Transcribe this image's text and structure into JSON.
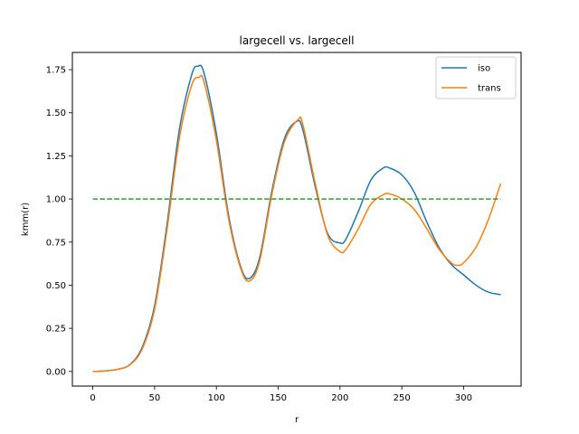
{
  "chart_data": {
    "type": "line",
    "title": "largecell vs. largecell",
    "xlabel": "r",
    "ylabel": "kmm(r)",
    "xlim": [
      -16.5,
      346.5
    ],
    "ylim": [
      -0.085,
      1.85
    ],
    "xticks": [
      0,
      50,
      100,
      150,
      200,
      250,
      300
    ],
    "yticks": [
      0.0,
      0.25,
      0.5,
      0.75,
      1.0,
      1.25,
      1.5,
      1.75
    ],
    "ytick_labels": [
      "0.00",
      "0.25",
      "0.50",
      "0.75",
      "1.00",
      "1.25",
      "1.50",
      "1.75"
    ],
    "grid": false,
    "legend_position": "top-right",
    "series": [
      {
        "name": "iso",
        "color": "#1f77b4",
        "style": "solid",
        "x": [
          0,
          10,
          20,
          30,
          40,
          50,
          60,
          70,
          80,
          85,
          90,
          100,
          110,
          120,
          127,
          135,
          145,
          155,
          165,
          170,
          180,
          190,
          200,
          205,
          215,
          225,
          235,
          240,
          250,
          260,
          270,
          280,
          290,
          300,
          310,
          320,
          330
        ],
        "y": [
          0.0,
          0.003,
          0.012,
          0.04,
          0.14,
          0.38,
          0.85,
          1.4,
          1.72,
          1.77,
          1.73,
          1.38,
          0.9,
          0.6,
          0.54,
          0.66,
          1.05,
          1.35,
          1.45,
          1.4,
          1.07,
          0.8,
          0.745,
          0.77,
          0.93,
          1.11,
          1.18,
          1.18,
          1.14,
          1.04,
          0.87,
          0.72,
          0.62,
          0.56,
          0.5,
          0.46,
          0.445
        ]
      },
      {
        "name": "trans",
        "color": "#ff7f0e",
        "style": "solid",
        "x": [
          0,
          10,
          20,
          30,
          40,
          50,
          60,
          70,
          80,
          86,
          90,
          100,
          110,
          120,
          127,
          135,
          145,
          155,
          166,
          170,
          180,
          190,
          200,
          205,
          215,
          225,
          235,
          240,
          250,
          260,
          270,
          280,
          290,
          295,
          300,
          310,
          320,
          330
        ],
        "y": [
          0.0,
          0.003,
          0.012,
          0.038,
          0.13,
          0.36,
          0.82,
          1.35,
          1.66,
          1.705,
          1.68,
          1.34,
          0.88,
          0.59,
          0.525,
          0.64,
          1.03,
          1.33,
          1.46,
          1.43,
          1.09,
          0.79,
          0.695,
          0.71,
          0.83,
          0.97,
          1.025,
          1.03,
          1.0,
          0.94,
          0.83,
          0.71,
          0.63,
          0.615,
          0.63,
          0.72,
          0.88,
          1.09
        ]
      },
      {
        "color": "#2ca02c",
        "style": "dashed",
        "x": [
          0,
          330
        ],
        "y": [
          1.0,
          1.0
        ]
      }
    ]
  }
}
